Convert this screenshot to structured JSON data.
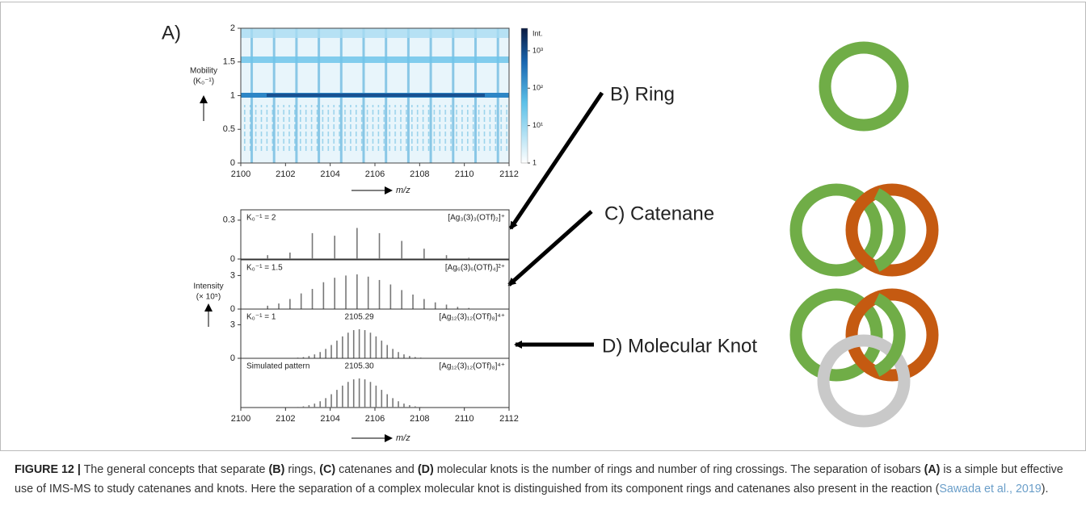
{
  "panel_label": "A)",
  "chart_data": [
    {
      "type": "heatmap",
      "ylabel": [
        "Mobility",
        "(K₀⁻¹)"
      ],
      "xlabel": "m/z",
      "xlim": [
        2100,
        2112
      ],
      "xticks": [
        2100,
        2102,
        2104,
        2106,
        2108,
        2110,
        2112
      ],
      "ylim": [
        0,
        2
      ],
      "yticks": [
        0,
        0.5,
        1,
        1.5,
        2
      ],
      "colorbar": {
        "title": "Int.",
        "log": true,
        "lim": [
          1,
          4000
        ],
        "ticks": [
          1,
          {
            "value": 10,
            "label": "10¹"
          },
          {
            "value": 100,
            "label": "10²"
          },
          {
            "value": 1000,
            "label": "10³"
          }
        ]
      }
    },
    {
      "type": "stem",
      "ylabel": [
        "Intensity",
        "(× 10⁵)"
      ],
      "xlabel": "m/z",
      "color": "#777777",
      "xlim": [
        2100,
        2112
      ],
      "xticks": [
        2100,
        2102,
        2104,
        2106,
        2108,
        2110,
        2112
      ],
      "panels": [
        {
          "label": "K₀⁻¹ = 2",
          "formula": "[Ag₃(3)₃(OTf)₂]⁺",
          "ylim": [
            0,
            0.38
          ],
          "yticks": [
            0,
            0.3
          ],
          "x": [
            2101.2,
            2102.2,
            2103.2,
            2104.2,
            2105.2,
            2106.2,
            2107.2,
            2108.2,
            2109.2,
            2110.2
          ],
          "values": [
            0.03,
            0.05,
            0.2,
            0.18,
            0.24,
            0.2,
            0.14,
            0.08,
            0.03,
            0.01
          ]
        },
        {
          "label": "K₀⁻¹ = 1.5",
          "formula": "[Ag₆(3)₆(OTf)₄]²⁺",
          "ylim": [
            0,
            4.4
          ],
          "yticks": [
            0,
            3
          ],
          "x": [
            2101.2,
            2101.7,
            2102.2,
            2102.7,
            2103.2,
            2103.7,
            2104.2,
            2104.7,
            2105.2,
            2105.7,
            2106.2,
            2106.7,
            2107.2,
            2107.7,
            2108.2,
            2108.7,
            2109.2,
            2109.7,
            2110.2
          ],
          "values": [
            0.3,
            0.5,
            0.9,
            1.4,
            1.8,
            2.4,
            2.8,
            3.0,
            3.1,
            2.9,
            2.6,
            2.2,
            1.7,
            1.3,
            0.9,
            0.6,
            0.4,
            0.2,
            0.1
          ]
        },
        {
          "label": "K₀⁻¹ = 1",
          "annotation": "2105.29",
          "formula": "[Ag₁₂(3)₁₂(OTf)₈]⁴⁺",
          "ylim": [
            0,
            4.4
          ],
          "yticks": [
            0,
            3
          ],
          "x": [
            2102.55,
            2102.8,
            2103.05,
            2103.3,
            2103.55,
            2103.8,
            2104.05,
            2104.3,
            2104.55,
            2104.8,
            2105.05,
            2105.3,
            2105.55,
            2105.8,
            2106.05,
            2106.3,
            2106.55,
            2106.8,
            2107.05,
            2107.3,
            2107.55,
            2107.8,
            2108.05
          ],
          "values": [
            0.06,
            0.11,
            0.21,
            0.35,
            0.56,
            0.84,
            1.19,
            1.58,
            1.96,
            2.29,
            2.52,
            2.6,
            2.52,
            2.29,
            1.96,
            1.58,
            1.19,
            0.84,
            0.56,
            0.35,
            0.21,
            0.11,
            0.06
          ]
        },
        {
          "label": "Simulated pattern",
          "annotation": "2105.30",
          "formula": "[Ag₁₂(3)₁₂(OTf)₈]⁴⁺",
          "ylim": [
            0,
            4.4
          ],
          "x": [
            2102.55,
            2102.8,
            2103.05,
            2103.3,
            2103.55,
            2103.8,
            2104.05,
            2104.3,
            2104.55,
            2104.8,
            2105.05,
            2105.3,
            2105.55,
            2105.8,
            2106.05,
            2106.3,
            2106.55,
            2106.8,
            2107.05,
            2107.3,
            2107.55,
            2107.8,
            2108.05
          ],
          "values": [
            0.06,
            0.11,
            0.21,
            0.35,
            0.56,
            0.84,
            1.19,
            1.58,
            1.96,
            2.29,
            2.52,
            2.6,
            2.52,
            2.29,
            1.96,
            1.58,
            1.19,
            0.84,
            0.56,
            0.35,
            0.21,
            0.11,
            0.06
          ]
        }
      ]
    }
  ],
  "labels": [
    "B) Ring",
    "C) Catenane",
    "D) Molecular Knot"
  ],
  "caption": {
    "parts": [
      "FIGURE 12 |",
      " The general concepts that separate ",
      "(B)",
      " rings, ",
      "(C)",
      " catenanes and ",
      "(D)",
      " molecular knots is the number of rings and number of ring crossings. The separation of isobars ",
      "(A)",
      " is a simple but effective use of IMS-MS to study catenanes and knots. Here the separation of a complex molecular knot is distinguished from its component rings and catenanes also present in the reaction (",
      "Sawada et al., 2019",
      "). "
    ]
  }
}
